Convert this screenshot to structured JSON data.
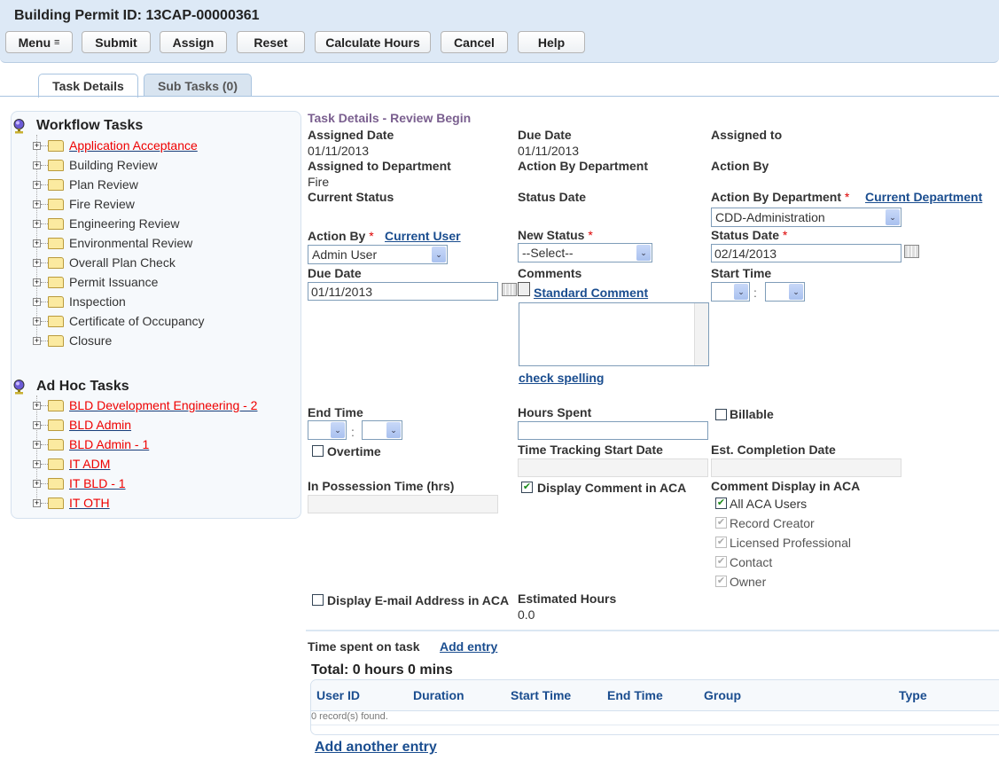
{
  "header": {
    "title": "Building Permit ID: 13CAP-00000361",
    "buttons": [
      "Menu",
      "Submit",
      "Assign",
      "Reset",
      "Calculate Hours",
      "Cancel",
      "Help"
    ]
  },
  "tabs": [
    {
      "label": "Task Details",
      "active": true
    },
    {
      "label": "Sub Tasks (0)",
      "active": false
    }
  ],
  "workflow": {
    "title": "Workflow Tasks",
    "items": [
      {
        "label": "Application Acceptance",
        "active": true
      },
      {
        "label": "Building Review"
      },
      {
        "label": "Plan Review"
      },
      {
        "label": "Fire Review"
      },
      {
        "label": "Engineering Review"
      },
      {
        "label": "Environmental Review"
      },
      {
        "label": "Overall Plan Check"
      },
      {
        "label": "Permit Issuance"
      },
      {
        "label": "Inspection"
      },
      {
        "label": "Certificate of Occupancy"
      },
      {
        "label": "Closure"
      }
    ]
  },
  "adhoc": {
    "title": "Ad Hoc Tasks",
    "items": [
      {
        "label": "BLD Development Engineering - 2",
        "active": true
      },
      {
        "label": "BLD Admin",
        "active": true
      },
      {
        "label": "BLD Admin - 1",
        "active": true
      },
      {
        "label": "IT ADM",
        "active": true
      },
      {
        "label": "IT BLD - 1",
        "active": true
      },
      {
        "label": "IT OTH",
        "active": true
      }
    ]
  },
  "details": {
    "title": "Task Details - Review Begin",
    "assigned_date_label": "Assigned Date",
    "assigned_date": "01/11/2013",
    "due_date_label": "Due Date",
    "due_date": "01/11/2013",
    "assigned_to_label": "Assigned to",
    "assigned_dept_label": "Assigned to Department",
    "assigned_dept": "Fire",
    "action_by_dept_label": "Action By Department",
    "action_by_label": "Action By",
    "current_status_label": "Current Status",
    "status_date_label": "Status Date",
    "form_action_by_dept_label": "Action By Department",
    "current_department_link": "Current Department",
    "action_by_dept_value": "CDD-Administration",
    "form_action_by_label": "Action By",
    "current_user_link": "Current User",
    "action_by_value": "Admin User",
    "new_status_label": "New Status",
    "new_status_value": "--Select--",
    "form_status_date_label": "Status Date",
    "status_date_value": "02/14/2013",
    "form_due_date_label": "Due Date",
    "due_date_value": "01/11/2013",
    "comments_label": "Comments",
    "standard_comment_link": "Standard Comment",
    "check_spelling_link": "check spelling",
    "start_time_label": "Start Time",
    "end_time_label": "End Time",
    "time_sep": ":",
    "overtime_label": "Overtime",
    "overtime_checked": false,
    "hours_spent_label": "Hours Spent",
    "billable_label": "Billable",
    "billable_checked": false,
    "tt_start_label": "Time Tracking Start Date",
    "est_completion_label": "Est. Completion Date",
    "possession_label": "In Possession Time (hrs)",
    "display_comment_label": "Display Comment in ACA",
    "display_comment_checked": true,
    "comment_display_label": "Comment Display in ACA",
    "comment_display_options": [
      {
        "label": "All ACA Users",
        "checked": true,
        "enabled": true
      },
      {
        "label": "Record Creator",
        "checked": true,
        "enabled": false
      },
      {
        "label": "Licensed Professional",
        "checked": true,
        "enabled": false
      },
      {
        "label": "Contact",
        "checked": true,
        "enabled": false
      },
      {
        "label": "Owner",
        "checked": true,
        "enabled": false
      }
    ],
    "display_email_label": "Display E-mail Address in ACA",
    "display_email_checked": false,
    "est_hours_label": "Estimated Hours",
    "est_hours": "0.0"
  },
  "time": {
    "title": "Time spent on task",
    "add_entry": "Add entry",
    "total": "Total: 0 hours 0 mins",
    "columns": [
      "User ID",
      "Duration",
      "Start Time",
      "End Time",
      "Group",
      "Type"
    ],
    "empty": "0 record(s) found.",
    "add_another": "Add another entry"
  }
}
